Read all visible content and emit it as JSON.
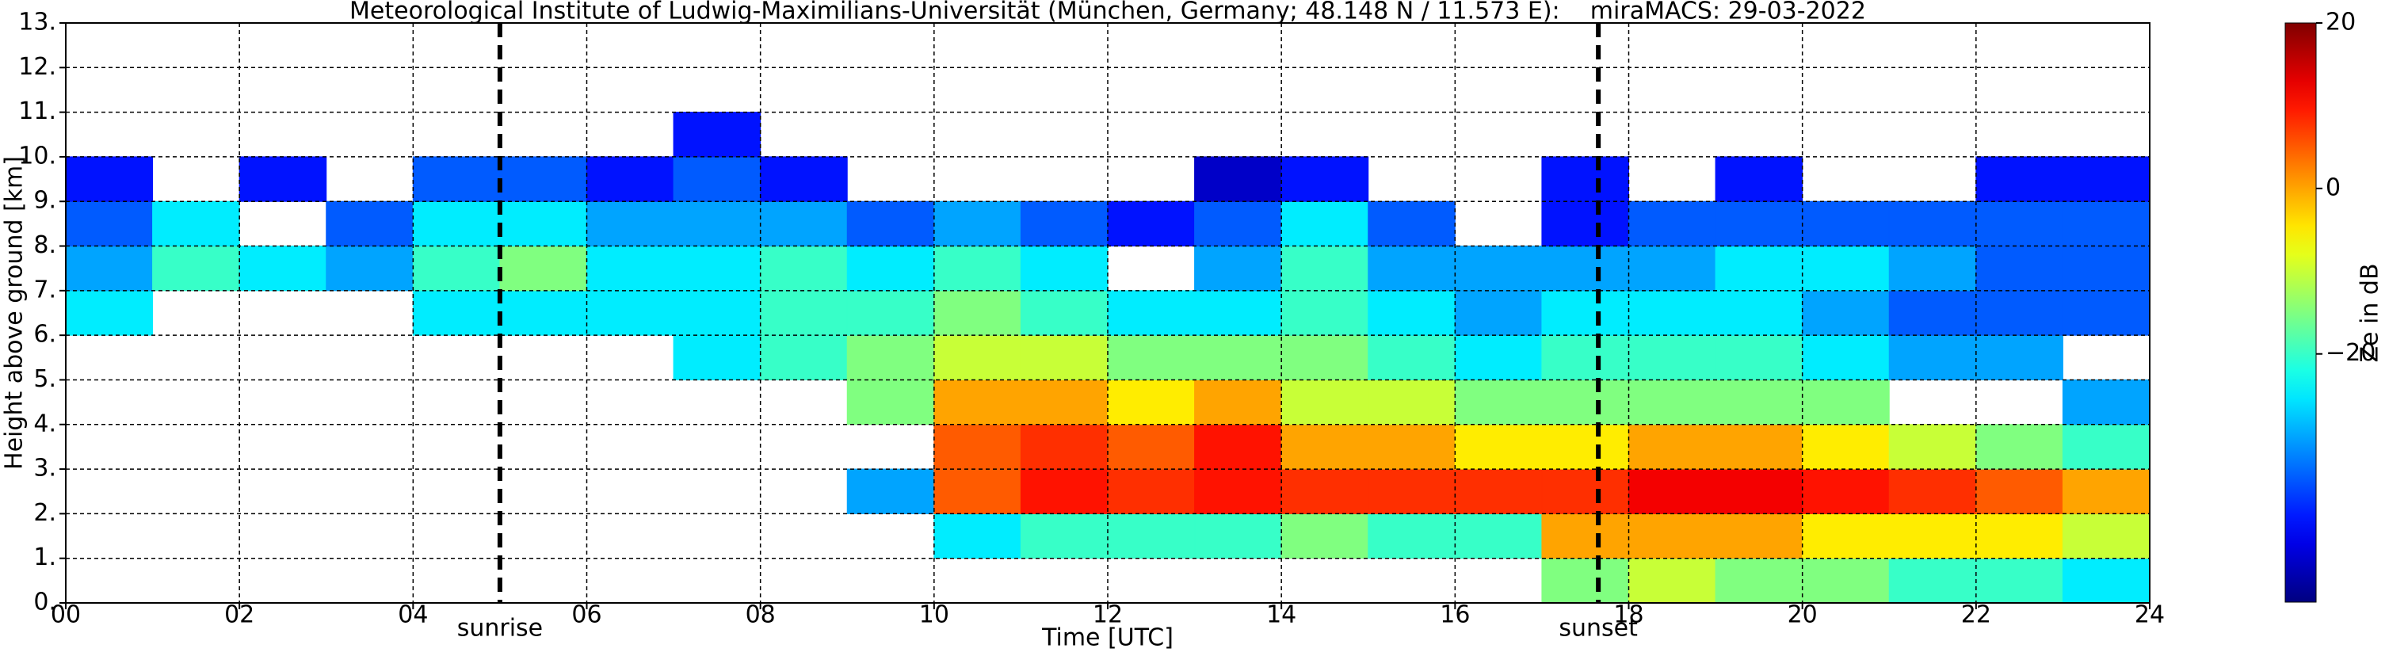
{
  "chart_data": {
    "type": "heatmap",
    "title": "Meteorological Institute of Ludwig-Maximilians-Universität (München, Germany; 48.148 N / 11.573 E):    miraMACS: 29-03-2022",
    "xlabel": "Time [UTC]",
    "ylabel": "Height above ground [km]",
    "colorbar_label": "Ze in dB",
    "colormap": "jet",
    "xlim": [
      0,
      24
    ],
    "ylim": [
      0,
      13
    ],
    "clim": [
      -50,
      20
    ],
    "xticks": [
      {
        "value": 0,
        "label": "00"
      },
      {
        "value": 2,
        "label": "02"
      },
      {
        "value": 4,
        "label": "04"
      },
      {
        "value": 6,
        "label": "06"
      },
      {
        "value": 8,
        "label": "08"
      },
      {
        "value": 10,
        "label": "10"
      },
      {
        "value": 12,
        "label": "12"
      },
      {
        "value": 14,
        "label": "14"
      },
      {
        "value": 16,
        "label": "16"
      },
      {
        "value": 18,
        "label": "18"
      },
      {
        "value": 20,
        "label": "20"
      },
      {
        "value": 22,
        "label": "22"
      },
      {
        "value": 24,
        "label": "24"
      }
    ],
    "yticks": [
      {
        "value": 0,
        "label": "0."
      },
      {
        "value": 1,
        "label": "1."
      },
      {
        "value": 2,
        "label": "2."
      },
      {
        "value": 3,
        "label": "3."
      },
      {
        "value": 4,
        "label": "4."
      },
      {
        "value": 5,
        "label": "5."
      },
      {
        "value": 6,
        "label": "6."
      },
      {
        "value": 7,
        "label": "7."
      },
      {
        "value": 8,
        "label": "8."
      },
      {
        "value": 9,
        "label": "9."
      },
      {
        "value": 10,
        "label": "10."
      },
      {
        "value": 11,
        "label": "11."
      },
      {
        "value": 12,
        "label": "12."
      },
      {
        "value": 13,
        "label": "13."
      }
    ],
    "cticks": [
      20,
      0,
      {
        "value": -20,
        "label": "−20"
      }
    ],
    "grid": true,
    "events": [
      {
        "label": "sunrise",
        "x": 5.0
      },
      {
        "label": "sunset",
        "x": 17.65
      }
    ],
    "x": [
      0.5,
      1.5,
      2.5,
      3.5,
      4.5,
      5.5,
      6.5,
      7.5,
      8.5,
      9.5,
      10.5,
      11.5,
      12.5,
      13.5,
      14.5,
      15.5,
      16.5,
      17.5,
      18.5,
      19.5,
      20.5,
      21.5,
      22.5,
      23.5
    ],
    "y": [
      0.5,
      1.5,
      2.5,
      3.5,
      4.5,
      5.5,
      6.5,
      7.5,
      8.5,
      9.5,
      10.5,
      11.5,
      12.5
    ],
    "z": [
      [
        null,
        null,
        null,
        null,
        null,
        null,
        null,
        null,
        null,
        null,
        null,
        null,
        null,
        null,
        null,
        null,
        null,
        -15,
        -10,
        -15,
        -15,
        -20,
        -20,
        -25
      ],
      [
        null,
        null,
        null,
        null,
        null,
        null,
        null,
        null,
        null,
        null,
        -25,
        -20,
        -20,
        -20,
        -15,
        -20,
        -20,
        0,
        0,
        0,
        -5,
        -5,
        -5,
        -10
      ],
      [
        null,
        null,
        null,
        null,
        null,
        null,
        null,
        null,
        null,
        -30,
        5,
        10,
        8,
        10,
        8,
        8,
        8,
        8,
        12,
        12,
        10,
        8,
        5,
        0
      ],
      [
        null,
        null,
        null,
        null,
        null,
        null,
        null,
        null,
        null,
        null,
        5,
        8,
        5,
        10,
        0,
        0,
        -5,
        -5,
        0,
        0,
        -5,
        -10,
        -15,
        -20
      ],
      [
        null,
        null,
        null,
        null,
        null,
        null,
        null,
        null,
        null,
        -15,
        0,
        0,
        -5,
        0,
        -10,
        -10,
        -15,
        -15,
        -15,
        -15,
        -15,
        null,
        null,
        -30
      ],
      [
        null,
        null,
        null,
        null,
        null,
        null,
        null,
        -25,
        -20,
        -15,
        -10,
        -10,
        -15,
        -15,
        -15,
        -20,
        -25,
        -20,
        -20,
        -20,
        -25,
        -30,
        -30,
        null
      ],
      [
        -25,
        null,
        null,
        null,
        -25,
        -25,
        -25,
        -25,
        -20,
        -20,
        -15,
        -20,
        -25,
        -25,
        -20,
        -25,
        -30,
        -25,
        -25,
        -25,
        -30,
        -35,
        -35,
        -35
      ],
      [
        -30,
        -20,
        -25,
        -30,
        -20,
        -15,
        -25,
        -25,
        -20,
        -25,
        -20,
        -25,
        null,
        -30,
        -20,
        -30,
        -30,
        -30,
        -30,
        -25,
        -25,
        -30,
        -35,
        -35
      ],
      [
        -35,
        -25,
        null,
        -35,
        -25,
        -25,
        -30,
        -30,
        -30,
        -35,
        -30,
        -35,
        -40,
        -35,
        -25,
        -35,
        null,
        -40,
        -35,
        -35,
        -35,
        -35,
        -35,
        -35
      ],
      [
        -40,
        null,
        -40,
        null,
        -35,
        -35,
        -40,
        -35,
        -40,
        null,
        null,
        null,
        null,
        -45,
        -40,
        null,
        null,
        -40,
        null,
        -40,
        null,
        null,
        -40,
        -40
      ],
      [
        null,
        null,
        null,
        null,
        null,
        null,
        null,
        -40,
        null,
        null,
        null,
        null,
        null,
        null,
        null,
        null,
        null,
        null,
        null,
        null,
        null,
        null,
        null,
        null
      ],
      [
        null,
        null,
        null,
        null,
        null,
        null,
        null,
        null,
        null,
        null,
        null,
        null,
        null,
        null,
        null,
        null,
        null,
        null,
        null,
        null,
        null,
        null,
        null,
        null
      ],
      [
        null,
        null,
        null,
        null,
        null,
        null,
        null,
        null,
        null,
        null,
        null,
        null,
        null,
        null,
        null,
        null,
        null,
        null,
        null,
        null,
        null,
        null,
        null,
        null
      ]
    ]
  }
}
